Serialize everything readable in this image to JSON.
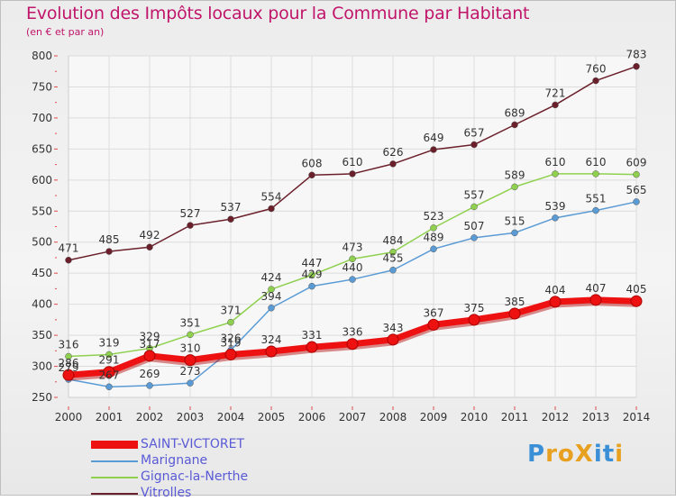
{
  "title": "Evolution des Impôts locaux pour la Commune par Habitant",
  "subtitle": "(en € et par an)",
  "logo": {
    "text": "ProXiti",
    "letters": [
      "P",
      "r",
      "o",
      "X",
      "i",
      "t",
      "i"
    ],
    "colors": [
      "#3a8fd6",
      "#e8a020",
      "#e8a020",
      "#e8a020",
      "#3a8fd6",
      "#3a8fd6",
      "#e8a020"
    ]
  },
  "chart_data": {
    "type": "line",
    "x": [
      "2000",
      "2001",
      "2002",
      "2003",
      "2004",
      "2005",
      "2006",
      "2007",
      "2008",
      "2009",
      "2010",
      "2011",
      "2012",
      "2013",
      "2014"
    ],
    "ylim": [
      250,
      800
    ],
    "yticks": [
      250,
      300,
      350,
      400,
      450,
      500,
      550,
      600,
      650,
      700,
      750,
      800
    ],
    "grid": true,
    "legend": "bottom-left",
    "series": [
      {
        "name": "Vitrolles",
        "color": "#6b1f2a",
        "values": [
          471,
          485,
          492,
          527,
          537,
          554,
          608,
          610,
          626,
          649,
          657,
          689,
          721,
          760,
          783
        ]
      },
      {
        "name": "Gignac-la-Nerthe",
        "color": "#8fd14f",
        "values": [
          316,
          319,
          329,
          351,
          371,
          424,
          447,
          473,
          484,
          523,
          557,
          589,
          610,
          610,
          609
        ]
      },
      {
        "name": "Marignane",
        "color": "#5b9bd5",
        "values": [
          279,
          267,
          269,
          273,
          326,
          394,
          429,
          440,
          455,
          489,
          507,
          515,
          539,
          551,
          565
        ]
      },
      {
        "name": "SAINT-VICTORET",
        "color": "#ee1111",
        "values": [
          286,
          291,
          317,
          310,
          319,
          324,
          331,
          336,
          343,
          367,
          375,
          385,
          404,
          407,
          405
        ]
      }
    ],
    "legend_order": [
      "SAINT-VICTORET",
      "Marignane",
      "Gignac-la-Nerthe",
      "Vitrolles"
    ]
  }
}
